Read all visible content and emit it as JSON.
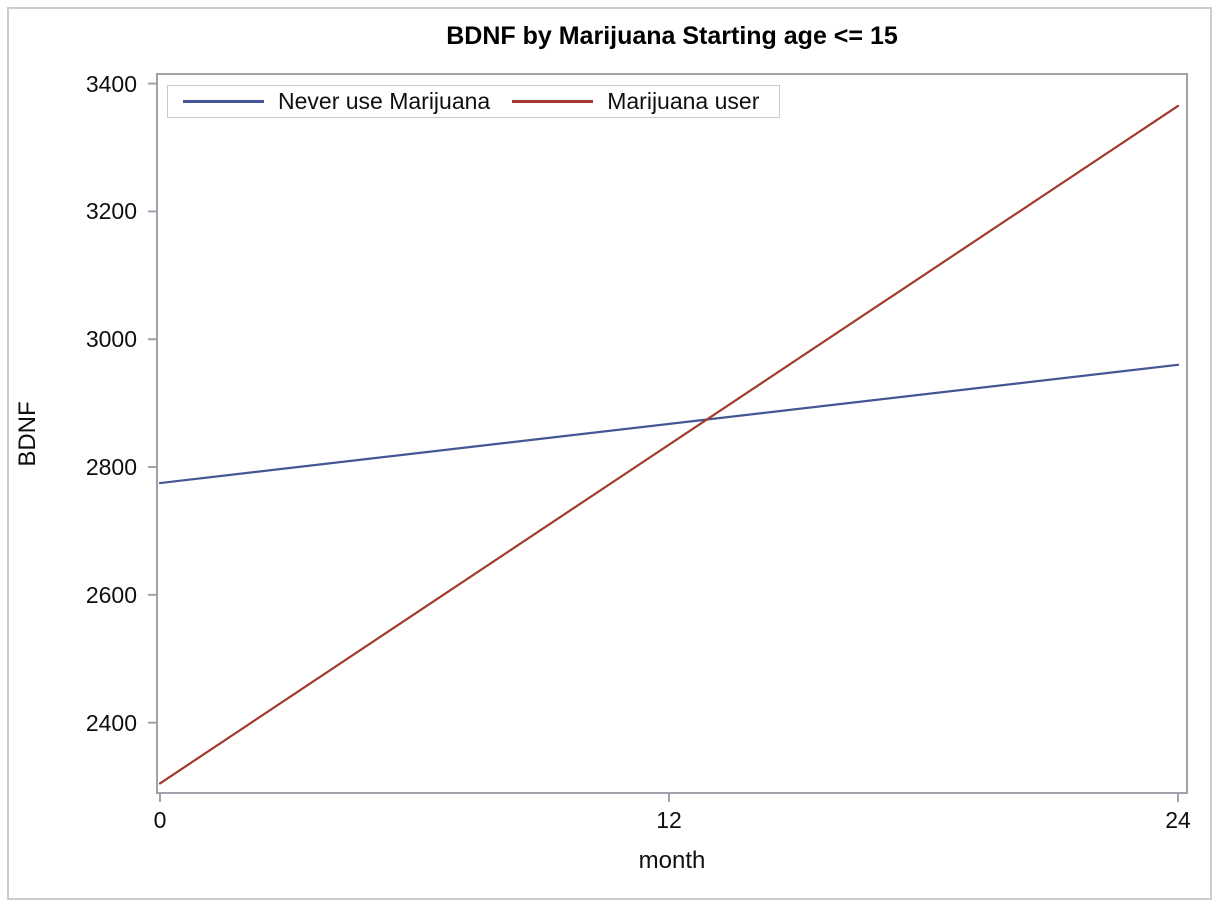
{
  "chart_data": {
    "type": "line",
    "title": "BDNF by Marijuana Starting age <= 15",
    "xlabel": "month",
    "ylabel": "BDNF",
    "x_ticks": [
      0,
      12,
      24
    ],
    "y_ticks": [
      2400,
      2600,
      2800,
      3000,
      3200,
      3400
    ],
    "xlim": [
      0,
      24
    ],
    "ylim": [
      2290,
      3415
    ],
    "grid": false,
    "legend_position": "top-left-inside",
    "series": [
      {
        "name": "Never use Marijuana",
        "color": "#445694",
        "x": [
          0,
          24
        ],
        "y": [
          2775,
          2960
        ]
      },
      {
        "name": "Marijuana user",
        "color": "#A23A2E",
        "x": [
          0,
          24
        ],
        "y": [
          2305,
          3365
        ]
      }
    ],
    "frame_color": "#9da3a9",
    "tick_color": "#9da3a9"
  }
}
